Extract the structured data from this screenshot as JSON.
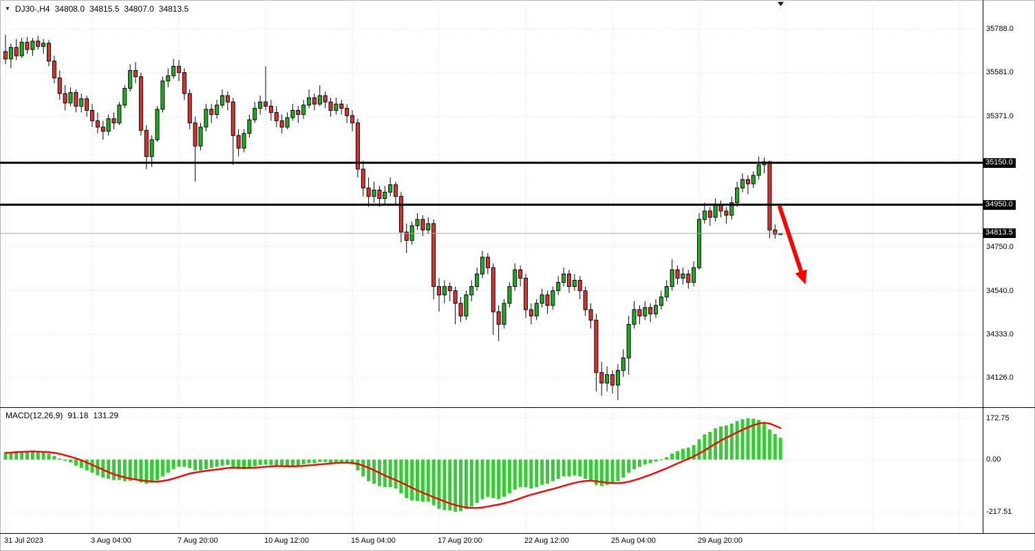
{
  "window": {
    "bg": "#ffffff",
    "border": "#b4b4b4"
  },
  "quote_bar": {
    "symbol_period": "DJ30-,H4",
    "open": "34808.0",
    "high": "34815.5",
    "low": "34807.0",
    "close": "34813.5"
  },
  "macd_panel_label": {
    "title": "MACD(12,26,9)",
    "main_value": "91.18",
    "signal_value": "131.29"
  },
  "icons": {
    "symbol_marker": "▼",
    "chart_shift": "▼"
  },
  "colors": {
    "bull": "#1fae1f",
    "bear": "#dd3232",
    "outline": "#000000",
    "macd_hist": "#33cc33",
    "macd_signal": "#ff0000",
    "level_line": "#000000",
    "bid_line": "#a8a8a8",
    "grid": "#d2d2d2",
    "separator": "#000000",
    "badge_bg": "#000000",
    "badge_fg": "#ffffff",
    "axis_text": "#000000",
    "arrow": "#ff0000"
  },
  "chart_data": {
    "type": "candlestick",
    "title": "DJ30-,H4",
    "timeframe": "H4",
    "legend_position": "none",
    "grid": "dotted",
    "main_ylim": [
      33988,
      35926
    ],
    "macd_ylim": [
      -303,
      212
    ],
    "y_axis_labels": [
      {
        "price": 35788.0,
        "label": "35788.0"
      },
      {
        "price": 35581.0,
        "label": "35581.0"
      },
      {
        "price": 35371.0,
        "label": "35371.0"
      },
      {
        "price": 34750.0,
        "label": "34750.0"
      },
      {
        "price": 34540.0,
        "label": "34540.0"
      },
      {
        "price": 34333.0,
        "label": "34333.0"
      },
      {
        "price": 34126.0,
        "label": "34126.0"
      }
    ],
    "grid_prices": [
      35788,
      35581,
      35371,
      35164,
      34957,
      34750,
      34540,
      34333,
      34126
    ],
    "x_ticks": [
      {
        "index": 0,
        "label": "31 Jul 2023"
      },
      {
        "index": 16,
        "label": "3 Aug 04:00"
      },
      {
        "index": 32,
        "label": "7 Aug 20:00"
      },
      {
        "index": 48,
        "label": "10 Aug 12:00"
      },
      {
        "index": 64,
        "label": "15 Aug 04:00"
      },
      {
        "index": 80,
        "label": "17 Aug 20:00"
      },
      {
        "index": 96,
        "label": "22 Aug 12:00"
      },
      {
        "index": 112,
        "label": "25 Aug 04:00"
      },
      {
        "index": 128,
        "label": "29 Aug 20:00"
      }
    ],
    "extra_grid_indices": [
      144,
      160,
      176
    ],
    "levels": [
      {
        "price": 35150.0,
        "label": "35150.0"
      },
      {
        "price": 34950.0,
        "label": "34950.0"
      }
    ],
    "bid": {
      "price": 34813.5,
      "label": "34813.5"
    },
    "macd_scale": [
      {
        "value": 172.75,
        "label": "172.75"
      },
      {
        "value": 0,
        "label": "0.00"
      },
      {
        "value": -217.51,
        "label": "-217.51"
      }
    ],
    "arrow": {
      "from": {
        "index": 142.8,
        "price": 34945
      },
      "to": {
        "index": 147.6,
        "price": 34570
      }
    },
    "candles": [
      [
        35680,
        35760,
        35620,
        35645
      ],
      [
        35645,
        35720,
        35600,
        35700
      ],
      [
        35700,
        35740,
        35640,
        35660
      ],
      [
        35660,
        35745,
        35650,
        35725
      ],
      [
        35725,
        35750,
        35670,
        35690
      ],
      [
        35690,
        35745,
        35660,
        35730
      ],
      [
        35730,
        35755,
        35690,
        35705
      ],
      [
        35705,
        35740,
        35670,
        35720
      ],
      [
        35720,
        35735,
        35610,
        35635
      ],
      [
        35635,
        35660,
        35530,
        35555
      ],
      [
        35555,
        35590,
        35450,
        35480
      ],
      [
        35480,
        35520,
        35400,
        35435
      ],
      [
        35435,
        35510,
        35420,
        35485
      ],
      [
        35485,
        35500,
        35390,
        35420
      ],
      [
        35420,
        35480,
        35390,
        35455
      ],
      [
        35455,
        35470,
        35370,
        35400
      ],
      [
        35400,
        35430,
        35320,
        35350
      ],
      [
        35350,
        35390,
        35290,
        35320
      ],
      [
        35320,
        35350,
        35260,
        35300
      ],
      [
        35300,
        35380,
        35280,
        35360
      ],
      [
        35360,
        35390,
        35310,
        35340
      ],
      [
        35340,
        35440,
        35330,
        35425
      ],
      [
        35425,
        35520,
        35410,
        35505
      ],
      [
        35505,
        35620,
        35490,
        35590
      ],
      [
        35590,
        35630,
        35530,
        35560
      ],
      [
        35560,
        35580,
        35280,
        35305
      ],
      [
        35305,
        35330,
        35120,
        35180
      ],
      [
        35180,
        35280,
        35130,
        35260
      ],
      [
        35260,
        35420,
        35250,
        35405
      ],
      [
        35405,
        35560,
        35390,
        35540
      ],
      [
        35540,
        35600,
        35510,
        35565
      ],
      [
        35565,
        35645,
        35550,
        35610
      ],
      [
        35610,
        35640,
        35540,
        35580
      ],
      [
        35580,
        35600,
        35450,
        35480
      ],
      [
        35480,
        35500,
        35310,
        35340
      ],
      [
        35340,
        35370,
        35060,
        35230
      ],
      [
        35230,
        35340,
        35210,
        35320
      ],
      [
        35320,
        35430,
        35300,
        35405
      ],
      [
        35405,
        35430,
        35340,
        35380
      ],
      [
        35380,
        35450,
        35360,
        35425
      ],
      [
        35425,
        35500,
        35410,
        35470
      ],
      [
        35470,
        35490,
        35400,
        35440
      ],
      [
        35440,
        35460,
        35140,
        35280
      ],
      [
        35280,
        35310,
        35180,
        35220
      ],
      [
        35220,
        35310,
        35200,
        35290
      ],
      [
        35290,
        35380,
        35270,
        35355
      ],
      [
        35355,
        35440,
        35340,
        35410
      ],
      [
        35410,
        35470,
        35380,
        35440
      ],
      [
        35440,
        35610,
        35400,
        35420
      ],
      [
        35420,
        35450,
        35350,
        35390
      ],
      [
        35390,
        35420,
        35320,
        35350
      ],
      [
        35350,
        35380,
        35290,
        35320
      ],
      [
        35320,
        35390,
        35310,
        35365
      ],
      [
        35365,
        35430,
        35350,
        35400
      ],
      [
        35400,
        35420,
        35340,
        35380
      ],
      [
        35380,
        35450,
        35360,
        35425
      ],
      [
        35425,
        35500,
        35410,
        35460
      ],
      [
        35460,
        35480,
        35400,
        35430
      ],
      [
        35430,
        35520,
        35420,
        35470
      ],
      [
        35470,
        35490,
        35410,
        35440
      ],
      [
        35440,
        35460,
        35370,
        35400
      ],
      [
        35400,
        35460,
        35380,
        35430
      ],
      [
        35430,
        35450,
        35380,
        35410
      ],
      [
        35410,
        35430,
        35340,
        35375
      ],
      [
        35375,
        35400,
        35300,
        35340
      ],
      [
        35340,
        35360,
        35080,
        35120
      ],
      [
        35120,
        35160,
        34990,
        35030
      ],
      [
        35030,
        35080,
        34940,
        34990
      ],
      [
        34990,
        35060,
        34960,
        35020
      ],
      [
        35020,
        35040,
        34940,
        34980
      ],
      [
        34980,
        35040,
        34950,
        35010
      ],
      [
        35010,
        35080,
        34990,
        35045
      ],
      [
        35045,
        35060,
        34950,
        34990
      ],
      [
        34990,
        35010,
        34770,
        34820
      ],
      [
        34820,
        34860,
        34720,
        34780
      ],
      [
        34780,
        34870,
        34760,
        34850
      ],
      [
        34850,
        34910,
        34830,
        34880
      ],
      [
        34880,
        34900,
        34800,
        34830
      ],
      [
        34830,
        34890,
        34810,
        34860
      ],
      [
        34860,
        34880,
        34500,
        34560
      ],
      [
        34560,
        34600,
        34440,
        34520
      ],
      [
        34520,
        34590,
        34480,
        34560
      ],
      [
        34560,
        34580,
        34490,
        34540
      ],
      [
        34540,
        34560,
        34380,
        34480
      ],
      [
        34480,
        34510,
        34390,
        34420
      ],
      [
        34420,
        34540,
        34400,
        34520
      ],
      [
        34520,
        34590,
        34490,
        34560
      ],
      [
        34560,
        34650,
        34540,
        34620
      ],
      [
        34620,
        34730,
        34600,
        34700
      ],
      [
        34700,
        34720,
        34620,
        34650
      ],
      [
        34650,
        34670,
        34330,
        34440
      ],
      [
        34440,
        34470,
        34300,
        34380
      ],
      [
        34380,
        34500,
        34360,
        34480
      ],
      [
        34480,
        34580,
        34460,
        34560
      ],
      [
        34560,
        34670,
        34540,
        34640
      ],
      [
        34640,
        34660,
        34560,
        34600
      ],
      [
        34600,
        34620,
        34410,
        34450
      ],
      [
        34450,
        34480,
        34380,
        34420
      ],
      [
        34420,
        34500,
        34400,
        34480
      ],
      [
        34480,
        34550,
        34460,
        34520
      ],
      [
        34520,
        34540,
        34430,
        34470
      ],
      [
        34470,
        34560,
        34450,
        34540
      ],
      [
        34540,
        34610,
        34520,
        34580
      ],
      [
        34580,
        34650,
        34560,
        34620
      ],
      [
        34620,
        34640,
        34530,
        34560
      ],
      [
        34560,
        34620,
        34540,
        34590
      ],
      [
        34590,
        34610,
        34500,
        34540
      ],
      [
        34540,
        34560,
        34420,
        34450
      ],
      [
        34450,
        34480,
        34360,
        34400
      ],
      [
        34400,
        34430,
        34060,
        34150
      ],
      [
        34150,
        34200,
        34040,
        34100
      ],
      [
        34100,
        34180,
        34060,
        34140
      ],
      [
        34140,
        34160,
        34050,
        34090
      ],
      [
        34090,
        34190,
        34020,
        34160
      ],
      [
        34160,
        34260,
        34130,
        34220
      ],
      [
        34220,
        34420,
        34140,
        34380
      ],
      [
        34380,
        34490,
        34360,
        34450
      ],
      [
        34450,
        34470,
        34380,
        34420
      ],
      [
        34420,
        34490,
        34400,
        34460
      ],
      [
        34460,
        34480,
        34390,
        34430
      ],
      [
        34430,
        34500,
        34410,
        34470
      ],
      [
        34470,
        34540,
        34450,
        34510
      ],
      [
        34510,
        34590,
        34490,
        34560
      ],
      [
        34560,
        34690,
        34540,
        34640
      ],
      [
        34640,
        34660,
        34570,
        34600
      ],
      [
        34600,
        34650,
        34570,
        34620
      ],
      [
        34620,
        34640,
        34550,
        34580
      ],
      [
        34580,
        34680,
        34560,
        34650
      ],
      [
        34650,
        34910,
        34640,
        34880
      ],
      [
        34880,
        34960,
        34860,
        34920
      ],
      [
        34920,
        34940,
        34850,
        34890
      ],
      [
        34890,
        34980,
        34870,
        34950
      ],
      [
        34950,
        34970,
        34890,
        34920
      ],
      [
        34920,
        34940,
        34860,
        34900
      ],
      [
        34900,
        34990,
        34880,
        34960
      ],
      [
        34960,
        35060,
        34940,
        35030
      ],
      [
        35030,
        35100,
        35010,
        35070
      ],
      [
        35070,
        35090,
        35000,
        35050
      ],
      [
        35050,
        35110,
        35030,
        35090
      ],
      [
        35090,
        35180,
        35070,
        35140
      ],
      [
        35140,
        35175,
        35100,
        35155
      ],
      [
        35155,
        35160,
        34790,
        34830
      ],
      [
        34830,
        34856,
        34788,
        34810
      ],
      [
        34808,
        34815.5,
        34807,
        34813.5
      ]
    ],
    "macd_histogram": [
      30,
      32,
      35,
      33,
      36,
      34,
      32,
      30,
      25,
      15,
      5,
      -5,
      -12,
      -25,
      -35,
      -45,
      -55,
      -65,
      -75,
      -80,
      -85,
      -85,
      -90,
      -88,
      -85,
      -95,
      -100,
      -95,
      -85,
      -70,
      -55,
      -40,
      -30,
      -30,
      -35,
      -45,
      -45,
      -40,
      -35,
      -30,
      -25,
      -22,
      -35,
      -40,
      -40,
      -35,
      -28,
      -22,
      -20,
      -22,
      -25,
      -30,
      -30,
      -25,
      -25,
      -20,
      -15,
      -15,
      -10,
      -10,
      -12,
      -10,
      -10,
      -15,
      -20,
      -45,
      -70,
      -90,
      -100,
      -110,
      -115,
      -115,
      -120,
      -140,
      -160,
      -170,
      -172,
      -175,
      -175,
      -190,
      -205,
      -210,
      -212,
      -217,
      -215,
      -205,
      -195,
      -180,
      -165,
      -155,
      -160,
      -165,
      -155,
      -140,
      -125,
      -115,
      -115,
      -120,
      -115,
      -105,
      -100,
      -90,
      -80,
      -70,
      -70,
      -65,
      -70,
      -80,
      -90,
      -105,
      -110,
      -105,
      -100,
      -90,
      -75,
      -55,
      -40,
      -30,
      -20,
      -15,
      -8,
      0,
      10,
      25,
      35,
      45,
      50,
      60,
      85,
      105,
      115,
      130,
      138,
      142,
      150,
      160,
      168,
      172,
      170,
      165,
      150,
      125,
      106,
      91.18
    ],
    "macd_signal": [
      28,
      29,
      31,
      32,
      33,
      34,
      33,
      32,
      31,
      28,
      24,
      18,
      12,
      5,
      -3,
      -12,
      -22,
      -32,
      -42,
      -52,
      -61,
      -68,
      -74,
      -79,
      -83,
      -86,
      -89,
      -91,
      -91,
      -89,
      -85,
      -79,
      -72,
      -65,
      -58,
      -54,
      -50,
      -47,
      -44,
      -41,
      -38,
      -35,
      -34,
      -34,
      -35,
      -35,
      -34,
      -32,
      -30,
      -28,
      -27,
      -27,
      -28,
      -28,
      -27,
      -26,
      -24,
      -22,
      -20,
      -18,
      -16,
      -14,
      -13,
      -13,
      -14,
      -18,
      -25,
      -34,
      -44,
      -55,
      -66,
      -76,
      -85,
      -95,
      -106,
      -117,
      -128,
      -138,
      -147,
      -156,
      -165,
      -174,
      -182,
      -189,
      -195,
      -199,
      -201,
      -201,
      -199,
      -195,
      -191,
      -187,
      -182,
      -176,
      -169,
      -161,
      -153,
      -146,
      -140,
      -134,
      -128,
      -122,
      -116,
      -109,
      -103,
      -97,
      -92,
      -89,
      -88,
      -90,
      -93,
      -96,
      -98,
      -98,
      -96,
      -92,
      -86,
      -79,
      -71,
      -63,
      -54,
      -45,
      -36,
      -26,
      -16,
      -6,
      3,
      13,
      25,
      38,
      52,
      66,
      79,
      91,
      102,
      113,
      124,
      134,
      143,
      150,
      153,
      150,
      141,
      131.29
    ]
  }
}
